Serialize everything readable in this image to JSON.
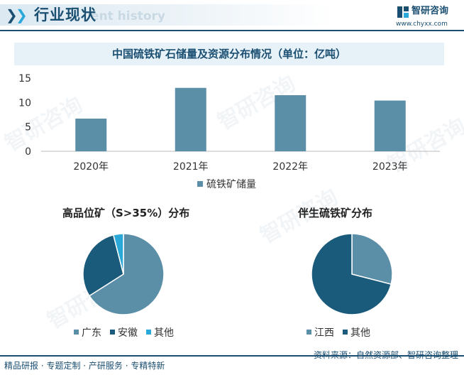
{
  "header": {
    "title": "行业现状",
    "ghost_text": "ent history",
    "chevrons": "❯❯",
    "logo_text": "智研咨询",
    "logo_url": "www.chyxx.com"
  },
  "chart_title": "中国硫铁矿石储量及资源分布情况（单位：亿吨）",
  "colors": {
    "bar": "#5b8fa8",
    "dark": "#1a5a7a",
    "mid": "#5b8fa8",
    "light": "#2aa8d8",
    "brand": "#1b4f72"
  },
  "chart_data": [
    {
      "type": "bar",
      "categories": [
        "2020年",
        "2021年",
        "2022年",
        "2023年"
      ],
      "series": [
        {
          "name": "硫铁矿储量",
          "values": [
            6.7,
            13.0,
            11.5,
            10.4
          ]
        }
      ],
      "ylim": [
        0,
        15
      ],
      "yticks": [
        0,
        5,
        10,
        15
      ],
      "grid": false,
      "legend": "bottom"
    },
    {
      "type": "pie",
      "title": "高品位矿（S>35%）分布",
      "labels": [
        "广东",
        "安徽",
        "其他"
      ],
      "values": [
        66,
        30,
        4
      ],
      "legend": "bottom"
    },
    {
      "type": "pie",
      "title": "伴生硫铁矿分布",
      "labels": [
        "江西",
        "其他"
      ],
      "values": [
        29,
        71
      ],
      "legend": "bottom"
    }
  ],
  "watermark": "智研咨询",
  "footer": {
    "left": "精品研报 · 专题定制 · 产研服务 · 专精特新",
    "right": "资料来源：自然资源部、智研咨询整理"
  }
}
